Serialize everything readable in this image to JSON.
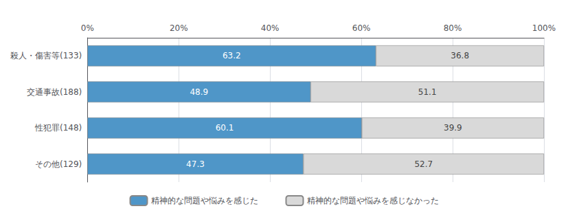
{
  "chart_data": {
    "type": "bar",
    "orientation": "horizontal",
    "stacked": true,
    "categories": [
      "殺人・傷害等(133)",
      "交通事故(188)",
      "性犯罪(148)",
      "その他(129)"
    ],
    "series": [
      {
        "name": "精神的な問題や悩みを感じた",
        "color": "#4f96c8",
        "values": [
          63.2,
          48.9,
          60.1,
          47.3
        ]
      },
      {
        "name": "精神的な問題や悩みを感じなかった",
        "color": "#d9d9d9",
        "values": [
          36.8,
          51.1,
          39.9,
          52.7
        ]
      }
    ],
    "xlim": [
      0,
      100
    ],
    "xticks": [
      {
        "value": 0,
        "label": "0%"
      },
      {
        "value": 20,
        "label": "20%"
      },
      {
        "value": 40,
        "label": "40%"
      },
      {
        "value": 60,
        "label": "60%"
      },
      {
        "value": 80,
        "label": "80%"
      },
      {
        "value": 100,
        "label": "100%"
      }
    ],
    "grid": true,
    "legend": "bottom",
    "data_labels": true
  }
}
